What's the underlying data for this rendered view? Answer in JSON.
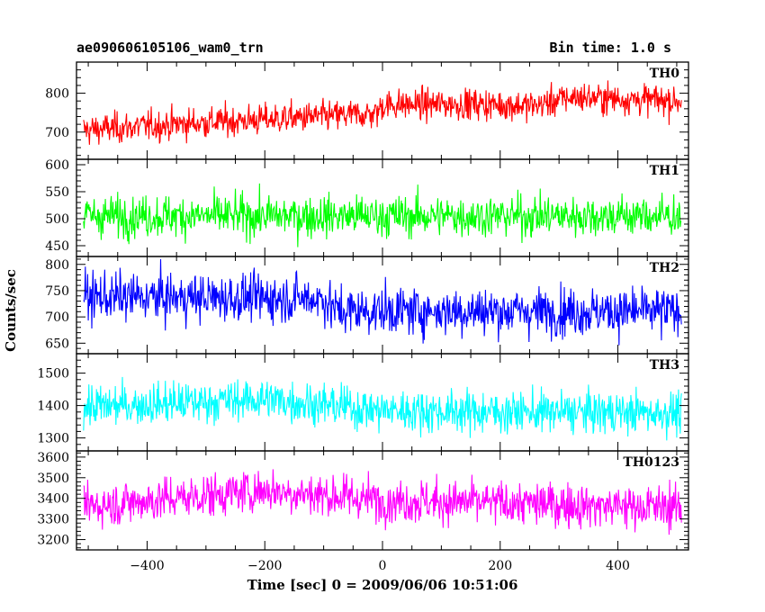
{
  "header": {
    "title": "ae090606105106_wam0_trn",
    "bin_time": "Bin time: 1.0 s"
  },
  "chart_data": {
    "type": "line",
    "xlabel": "Time [sec] 0 = 2009/06/06 10:51:06",
    "ylabel": "Counts/sec",
    "xlim": [
      -520,
      520
    ],
    "x_ticks": [
      -400,
      -200,
      0,
      200,
      400
    ],
    "x_tick_labels": [
      "−400",
      "−200",
      "0",
      "200",
      "400"
    ],
    "x_minor_step": 50,
    "series_x_range": [
      -508,
      508
    ],
    "bin_time_sec": 1.0,
    "panels": [
      {
        "name": "TH0",
        "color": "#ff0000",
        "ylim": [
          630,
          880
        ],
        "yticks": [
          700,
          800
        ],
        "y_minor_step": 20,
        "trend": [
          [
            -508,
            705
          ],
          [
            -300,
            725
          ],
          [
            -100,
            740
          ],
          [
            -10,
            748
          ],
          [
            0,
            770
          ],
          [
            150,
            772
          ],
          [
            260,
            768
          ],
          [
            320,
            790
          ],
          [
            508,
            780
          ]
        ],
        "noise": 28
      },
      {
        "name": "TH1",
        "color": "#00ff00",
        "ylim": [
          430,
          610
        ],
        "yticks": [
          450,
          500,
          550,
          600
        ],
        "y_minor_step": 10,
        "trend": [
          [
            -508,
            505
          ],
          [
            508,
            505
          ]
        ],
        "noise": 27
      },
      {
        "name": "TH2",
        "color": "#0000ff",
        "ylim": [
          630,
          815
        ],
        "yticks": [
          650,
          700,
          750,
          800
        ],
        "y_minor_step": 10,
        "trend": [
          [
            -508,
            738
          ],
          [
            -100,
            735
          ],
          [
            -80,
            712
          ],
          [
            508,
            710
          ]
        ],
        "noise": 32
      },
      {
        "name": "TH3",
        "color": "#00ffff",
        "ylim": [
          1260,
          1560
        ],
        "yticks": [
          1300,
          1400,
          1500
        ],
        "y_minor_step": 20,
        "trend": [
          [
            -508,
            1395
          ],
          [
            -200,
            1420
          ],
          [
            0,
            1385
          ],
          [
            200,
            1380
          ],
          [
            508,
            1378
          ]
        ],
        "noise": 45
      },
      {
        "name": "TH0123",
        "color": "#ff00ff",
        "ylim": [
          3150,
          3630
        ],
        "yticks": [
          3200,
          3300,
          3400,
          3500,
          3600
        ],
        "y_minor_step": 20,
        "trend": [
          [
            -508,
            3360
          ],
          [
            -200,
            3440
          ],
          [
            0,
            3390
          ],
          [
            300,
            3370
          ],
          [
            508,
            3355
          ]
        ],
        "noise": 75
      }
    ]
  }
}
